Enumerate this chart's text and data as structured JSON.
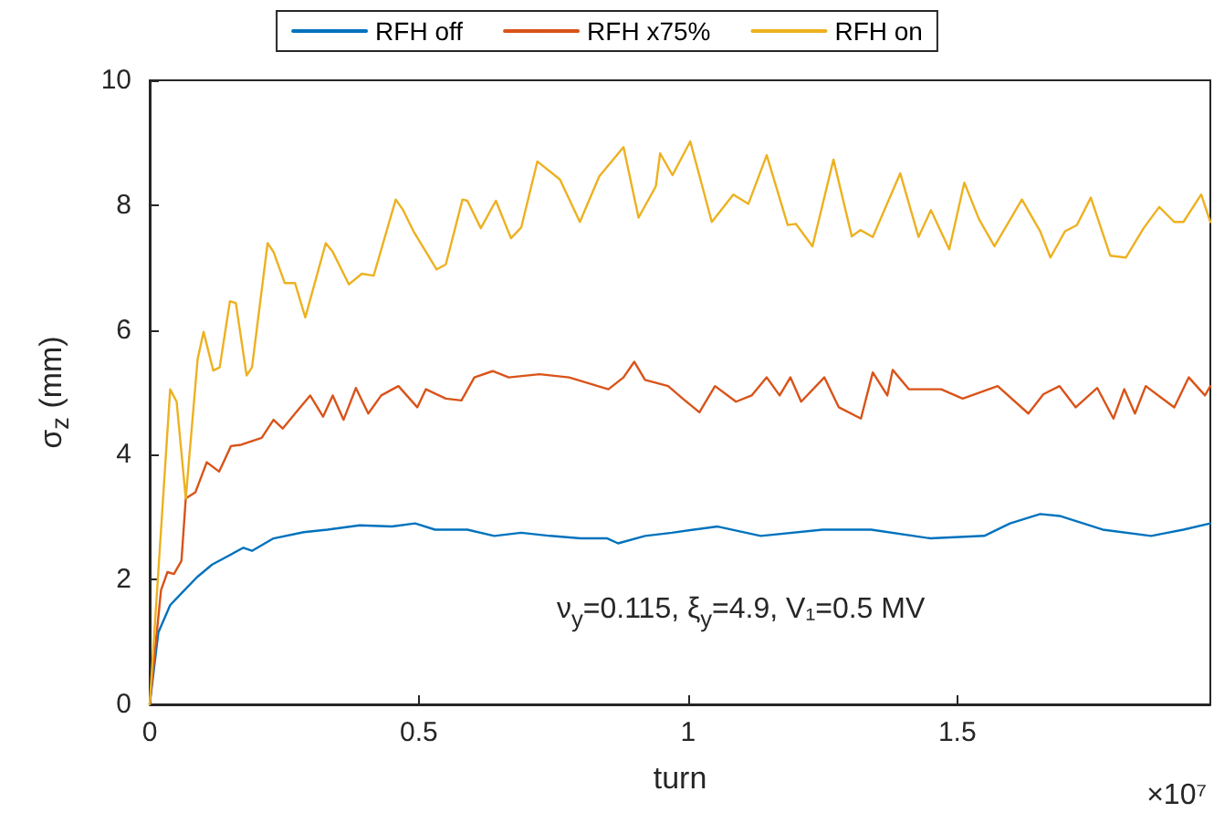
{
  "chart_data": {
    "type": "line",
    "xlabel": "turn",
    "ylabel": "σ$_{z}$ (mm)",
    "annotations": [
      "ν$_{y}$=0.115, ξ$_{y}$=4.9, V₁=0.5 MV",
      "×10⁷"
    ],
    "xlim": [
      0,
      1.97
    ],
    "xticks": [
      0,
      0.5,
      1,
      1.5
    ],
    "ylim": [
      0,
      10
    ],
    "yticks": [
      0,
      2,
      4,
      6,
      8,
      10
    ],
    "legend": "top",
    "series": [
      {
        "name": "RFH off",
        "color": "#0072bd",
        "x": [
          0,
          0.016,
          0.038,
          0.06,
          0.088,
          0.116,
          0.174,
          0.19,
          0.23,
          0.286,
          0.33,
          0.39,
          0.45,
          0.493,
          0.53,
          0.59,
          0.64,
          0.69,
          0.744,
          0.8,
          0.85,
          0.87,
          0.92,
          0.97,
          1.01,
          1.055,
          1.135,
          1.25,
          1.34,
          1.45,
          1.55,
          1.598,
          1.654,
          1.69,
          1.77,
          1.86,
          1.92,
          1.97
        ],
        "values": [
          0,
          1.15,
          1.59,
          1.79,
          2.04,
          2.24,
          2.51,
          2.46,
          2.66,
          2.76,
          2.8,
          2.87,
          2.85,
          2.9,
          2.8,
          2.8,
          2.7,
          2.75,
          2.7,
          2.66,
          2.66,
          2.58,
          2.7,
          2.75,
          2.8,
          2.85,
          2.7,
          2.8,
          2.8,
          2.66,
          2.7,
          2.9,
          3.05,
          3.02,
          2.8,
          2.7,
          2.8,
          2.9
        ]
      },
      {
        "name": "RFH x75%",
        "color": "#d95319",
        "x": [
          0,
          0.021,
          0.033,
          0.045,
          0.059,
          0.067,
          0.085,
          0.106,
          0.129,
          0.151,
          0.17,
          0.208,
          0.23,
          0.247,
          0.27,
          0.298,
          0.322,
          0.34,
          0.36,
          0.383,
          0.406,
          0.43,
          0.462,
          0.497,
          0.513,
          0.55,
          0.579,
          0.603,
          0.637,
          0.667,
          0.724,
          0.779,
          0.852,
          0.88,
          0.9,
          0.92,
          0.963,
          0.99,
          1.021,
          1.05,
          1.089,
          1.118,
          1.146,
          1.17,
          1.19,
          1.21,
          1.253,
          1.28,
          1.321,
          1.343,
          1.37,
          1.38,
          1.41,
          1.47,
          1.51,
          1.575,
          1.632,
          1.66,
          1.69,
          1.72,
          1.76,
          1.79,
          1.81,
          1.83,
          1.85,
          1.903,
          1.93,
          1.96,
          1.97
        ],
        "values": [
          0,
          1.83,
          2.12,
          2.09,
          2.3,
          3.3,
          3.4,
          3.88,
          3.73,
          4.14,
          4.16,
          4.27,
          4.56,
          4.42,
          4.66,
          4.95,
          4.61,
          4.95,
          4.56,
          5.07,
          4.66,
          4.95,
          5.1,
          4.76,
          5.05,
          4.9,
          4.87,
          5.24,
          5.34,
          5.24,
          5.29,
          5.24,
          5.05,
          5.24,
          5.49,
          5.2,
          5.1,
          4.9,
          4.68,
          5.1,
          4.85,
          4.95,
          5.24,
          4.95,
          5.24,
          4.85,
          5.24,
          4.76,
          4.58,
          5.32,
          4.95,
          5.36,
          5.05,
          5.05,
          4.9,
          5.1,
          4.66,
          4.97,
          5.1,
          4.76,
          5.07,
          4.58,
          5.05,
          4.66,
          5.1,
          4.76,
          5.24,
          4.95,
          5.1
        ]
      },
      {
        "name": "RFH on",
        "color": "#edb120",
        "x": [
          0,
          0.038,
          0.05,
          0.067,
          0.089,
          0.1,
          0.118,
          0.13,
          0.149,
          0.16,
          0.18,
          0.19,
          0.219,
          0.23,
          0.251,
          0.27,
          0.289,
          0.327,
          0.34,
          0.37,
          0.394,
          0.416,
          0.457,
          0.47,
          0.49,
          0.533,
          0.55,
          0.581,
          0.59,
          0.615,
          0.643,
          0.671,
          0.69,
          0.72,
          0.762,
          0.799,
          0.835,
          0.88,
          0.908,
          0.94,
          0.948,
          0.971,
          1.004,
          1.044,
          1.084,
          1.112,
          1.146,
          1.185,
          1.2,
          1.231,
          1.27,
          1.304,
          1.32,
          1.343,
          1.394,
          1.428,
          1.451,
          1.485,
          1.513,
          1.54,
          1.569,
          1.62,
          1.654,
          1.673,
          1.7,
          1.722,
          1.748,
          1.784,
          1.813,
          1.846,
          1.875,
          1.903,
          1.92,
          1.953,
          1.97
        ],
        "values": [
          0,
          5.05,
          4.85,
          3.3,
          5.53,
          5.97,
          5.35,
          5.4,
          6.46,
          6.43,
          5.27,
          5.4,
          7.39,
          7.25,
          6.75,
          6.75,
          6.2,
          7.39,
          7.25,
          6.73,
          6.9,
          6.87,
          8.09,
          7.93,
          7.58,
          6.97,
          7.05,
          8.09,
          8.07,
          7.63,
          8.07,
          7.47,
          7.64,
          8.7,
          8.41,
          7.73,
          8.46,
          8.93,
          7.8,
          8.3,
          8.83,
          8.48,
          9.02,
          7.73,
          8.17,
          8.02,
          8.8,
          7.68,
          7.7,
          7.34,
          8.73,
          7.5,
          7.6,
          7.49,
          8.51,
          7.49,
          7.92,
          7.29,
          8.36,
          7.78,
          7.34,
          8.09,
          7.58,
          7.16,
          7.58,
          7.68,
          8.12,
          7.19,
          7.16,
          7.63,
          7.97,
          7.73,
          7.73,
          8.17,
          7.73
        ]
      }
    ]
  }
}
